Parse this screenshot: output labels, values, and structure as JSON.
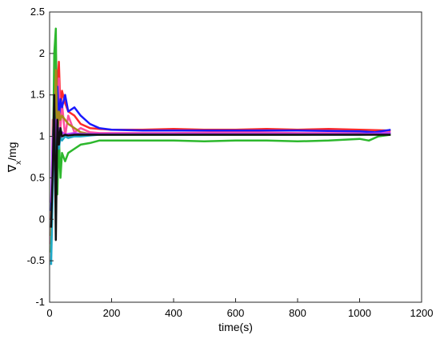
{
  "chart_data": {
    "type": "line",
    "title": "",
    "xlabel": "time(s)",
    "ylabel": "∇",
    "ylabel_subscript": "x",
    "ylabel_unit": "/mg",
    "xlim": [
      0,
      1200
    ],
    "ylim": [
      -1,
      2.5
    ],
    "xticks": [
      0,
      200,
      400,
      600,
      800,
      1000,
      1200
    ],
    "yticks": [
      -1,
      -0.5,
      0,
      0.5,
      1,
      1.5,
      2,
      2.5
    ],
    "grid": false,
    "legend": "none",
    "series": [
      {
        "color": "#ff2a2a",
        "points": [
          [
            5,
            0
          ],
          [
            10,
            0.8
          ],
          [
            15,
            1.6
          ],
          [
            20,
            2.0
          ],
          [
            25,
            1.5
          ],
          [
            30,
            1.9
          ],
          [
            35,
            1.3
          ],
          [
            40,
            1.55
          ],
          [
            50,
            1.4
          ],
          [
            60,
            1.3
          ],
          [
            80,
            1.25
          ],
          [
            100,
            1.15
          ],
          [
            130,
            1.1
          ],
          [
            160,
            1.09
          ],
          [
            200,
            1.08
          ],
          [
            300,
            1.08
          ],
          [
            400,
            1.09
          ],
          [
            500,
            1.08
          ],
          [
            600,
            1.08
          ],
          [
            700,
            1.09
          ],
          [
            800,
            1.08
          ],
          [
            900,
            1.09
          ],
          [
            1000,
            1.08
          ],
          [
            1100,
            1.07
          ]
        ]
      },
      {
        "color": "#ff4d9e",
        "points": [
          [
            5,
            -0.3
          ],
          [
            10,
            1.2
          ],
          [
            15,
            0.6
          ],
          [
            20,
            1.9
          ],
          [
            25,
            0.9
          ],
          [
            30,
            1.7
          ],
          [
            35,
            1.1
          ],
          [
            40,
            1.4
          ],
          [
            50,
            1.0
          ],
          [
            60,
            1.25
          ],
          [
            80,
            1.05
          ],
          [
            100,
            1.1
          ],
          [
            130,
            1.05
          ],
          [
            160,
            1.04
          ],
          [
            200,
            1.04
          ],
          [
            400,
            1.04
          ],
          [
            600,
            1.05
          ],
          [
            800,
            1.04
          ],
          [
            1000,
            1.04
          ],
          [
            1100,
            1.05
          ]
        ]
      },
      {
        "color": "#1a1aff",
        "points": [
          [
            5,
            0.1
          ],
          [
            10,
            0.9
          ],
          [
            15,
            1.4
          ],
          [
            20,
            1.0
          ],
          [
            25,
            1.6
          ],
          [
            30,
            1.2
          ],
          [
            35,
            1.45
          ],
          [
            40,
            1.35
          ],
          [
            50,
            1.5
          ],
          [
            60,
            1.3
          ],
          [
            80,
            1.35
          ],
          [
            100,
            1.25
          ],
          [
            130,
            1.15
          ],
          [
            160,
            1.1
          ],
          [
            200,
            1.08
          ],
          [
            300,
            1.07
          ],
          [
            400,
            1.07
          ],
          [
            600,
            1.07
          ],
          [
            800,
            1.07
          ],
          [
            1000,
            1.06
          ],
          [
            1050,
            1.05
          ],
          [
            1100,
            1.08
          ]
        ]
      },
      {
        "color": "#2db82d",
        "points": [
          [
            5,
            -0.4
          ],
          [
            10,
            0.5
          ],
          [
            15,
            2.0
          ],
          [
            20,
            2.3
          ],
          [
            25,
            0.3
          ],
          [
            30,
            1.0
          ],
          [
            35,
            0.5
          ],
          [
            40,
            0.8
          ],
          [
            50,
            0.7
          ],
          [
            60,
            0.8
          ],
          [
            80,
            0.85
          ],
          [
            100,
            0.9
          ],
          [
            130,
            0.92
          ],
          [
            160,
            0.95
          ],
          [
            200,
            0.95
          ],
          [
            300,
            0.95
          ],
          [
            400,
            0.95
          ],
          [
            500,
            0.94
          ],
          [
            600,
            0.95
          ],
          [
            700,
            0.95
          ],
          [
            800,
            0.94
          ],
          [
            900,
            0.95
          ],
          [
            950,
            0.96
          ],
          [
            1000,
            0.97
          ],
          [
            1030,
            0.95
          ],
          [
            1060,
            1.0
          ],
          [
            1100,
            1.02
          ]
        ]
      },
      {
        "color": "#a88a1a",
        "points": [
          [
            5,
            -0.2
          ],
          [
            10,
            0.7
          ],
          [
            15,
            1.1
          ],
          [
            20,
            1.8
          ],
          [
            25,
            1.0
          ],
          [
            30,
            1.3
          ],
          [
            35,
            1.2
          ],
          [
            40,
            1.25
          ],
          [
            50,
            1.2
          ],
          [
            60,
            1.15
          ],
          [
            80,
            1.1
          ],
          [
            100,
            1.05
          ],
          [
            130,
            1.03
          ],
          [
            160,
            1.02
          ],
          [
            200,
            1.02
          ],
          [
            400,
            1.02
          ],
          [
            600,
            1.02
          ],
          [
            800,
            1.02
          ],
          [
            1000,
            1.03
          ],
          [
            1100,
            1.03
          ]
        ]
      },
      {
        "color": "#1fa9c9",
        "points": [
          [
            5,
            -0.55
          ],
          [
            10,
            0.3
          ],
          [
            15,
            1.3
          ],
          [
            20,
            0.7
          ],
          [
            25,
            1.1
          ],
          [
            30,
            0.85
          ],
          [
            35,
            1.0
          ],
          [
            40,
            0.95
          ],
          [
            50,
            1.0
          ],
          [
            60,
            0.98
          ],
          [
            80,
            1.0
          ],
          [
            100,
            1.0
          ],
          [
            130,
            1.01
          ],
          [
            160,
            1.02
          ],
          [
            200,
            1.02
          ],
          [
            400,
            1.02
          ],
          [
            600,
            1.02
          ],
          [
            800,
            1.02
          ],
          [
            1000,
            1.02
          ],
          [
            1100,
            1.03
          ]
        ]
      },
      {
        "color": "#b63aff",
        "points": [
          [
            5,
            0.2
          ],
          [
            10,
            1.0
          ],
          [
            15,
            0.8
          ],
          [
            20,
            1.2
          ],
          [
            25,
            0.95
          ],
          [
            30,
            1.1
          ],
          [
            35,
            1.0
          ],
          [
            40,
            1.05
          ],
          [
            50,
            1.02
          ],
          [
            60,
            1.03
          ],
          [
            80,
            1.04
          ],
          [
            100,
            1.03
          ],
          [
            130,
            1.03
          ],
          [
            160,
            1.03
          ],
          [
            200,
            1.03
          ],
          [
            400,
            1.03
          ],
          [
            600,
            1.03
          ],
          [
            800,
            1.03
          ],
          [
            1000,
            1.03
          ],
          [
            1100,
            1.04
          ]
        ]
      },
      {
        "color": "#111111",
        "points": [
          [
            5,
            -0.1
          ],
          [
            10,
            0.6
          ],
          [
            15,
            1.5
          ],
          [
            20,
            -0.25
          ],
          [
            25,
            1.2
          ],
          [
            30,
            0.9
          ],
          [
            35,
            1.1
          ],
          [
            40,
            1.0
          ],
          [
            50,
            1.02
          ],
          [
            60,
            1.01
          ],
          [
            80,
            1.02
          ],
          [
            100,
            1.02
          ],
          [
            130,
            1.02
          ],
          [
            160,
            1.02
          ],
          [
            200,
            1.02
          ],
          [
            400,
            1.02
          ],
          [
            600,
            1.02
          ],
          [
            800,
            1.02
          ],
          [
            1000,
            1.02
          ],
          [
            1100,
            1.02
          ]
        ]
      }
    ]
  }
}
